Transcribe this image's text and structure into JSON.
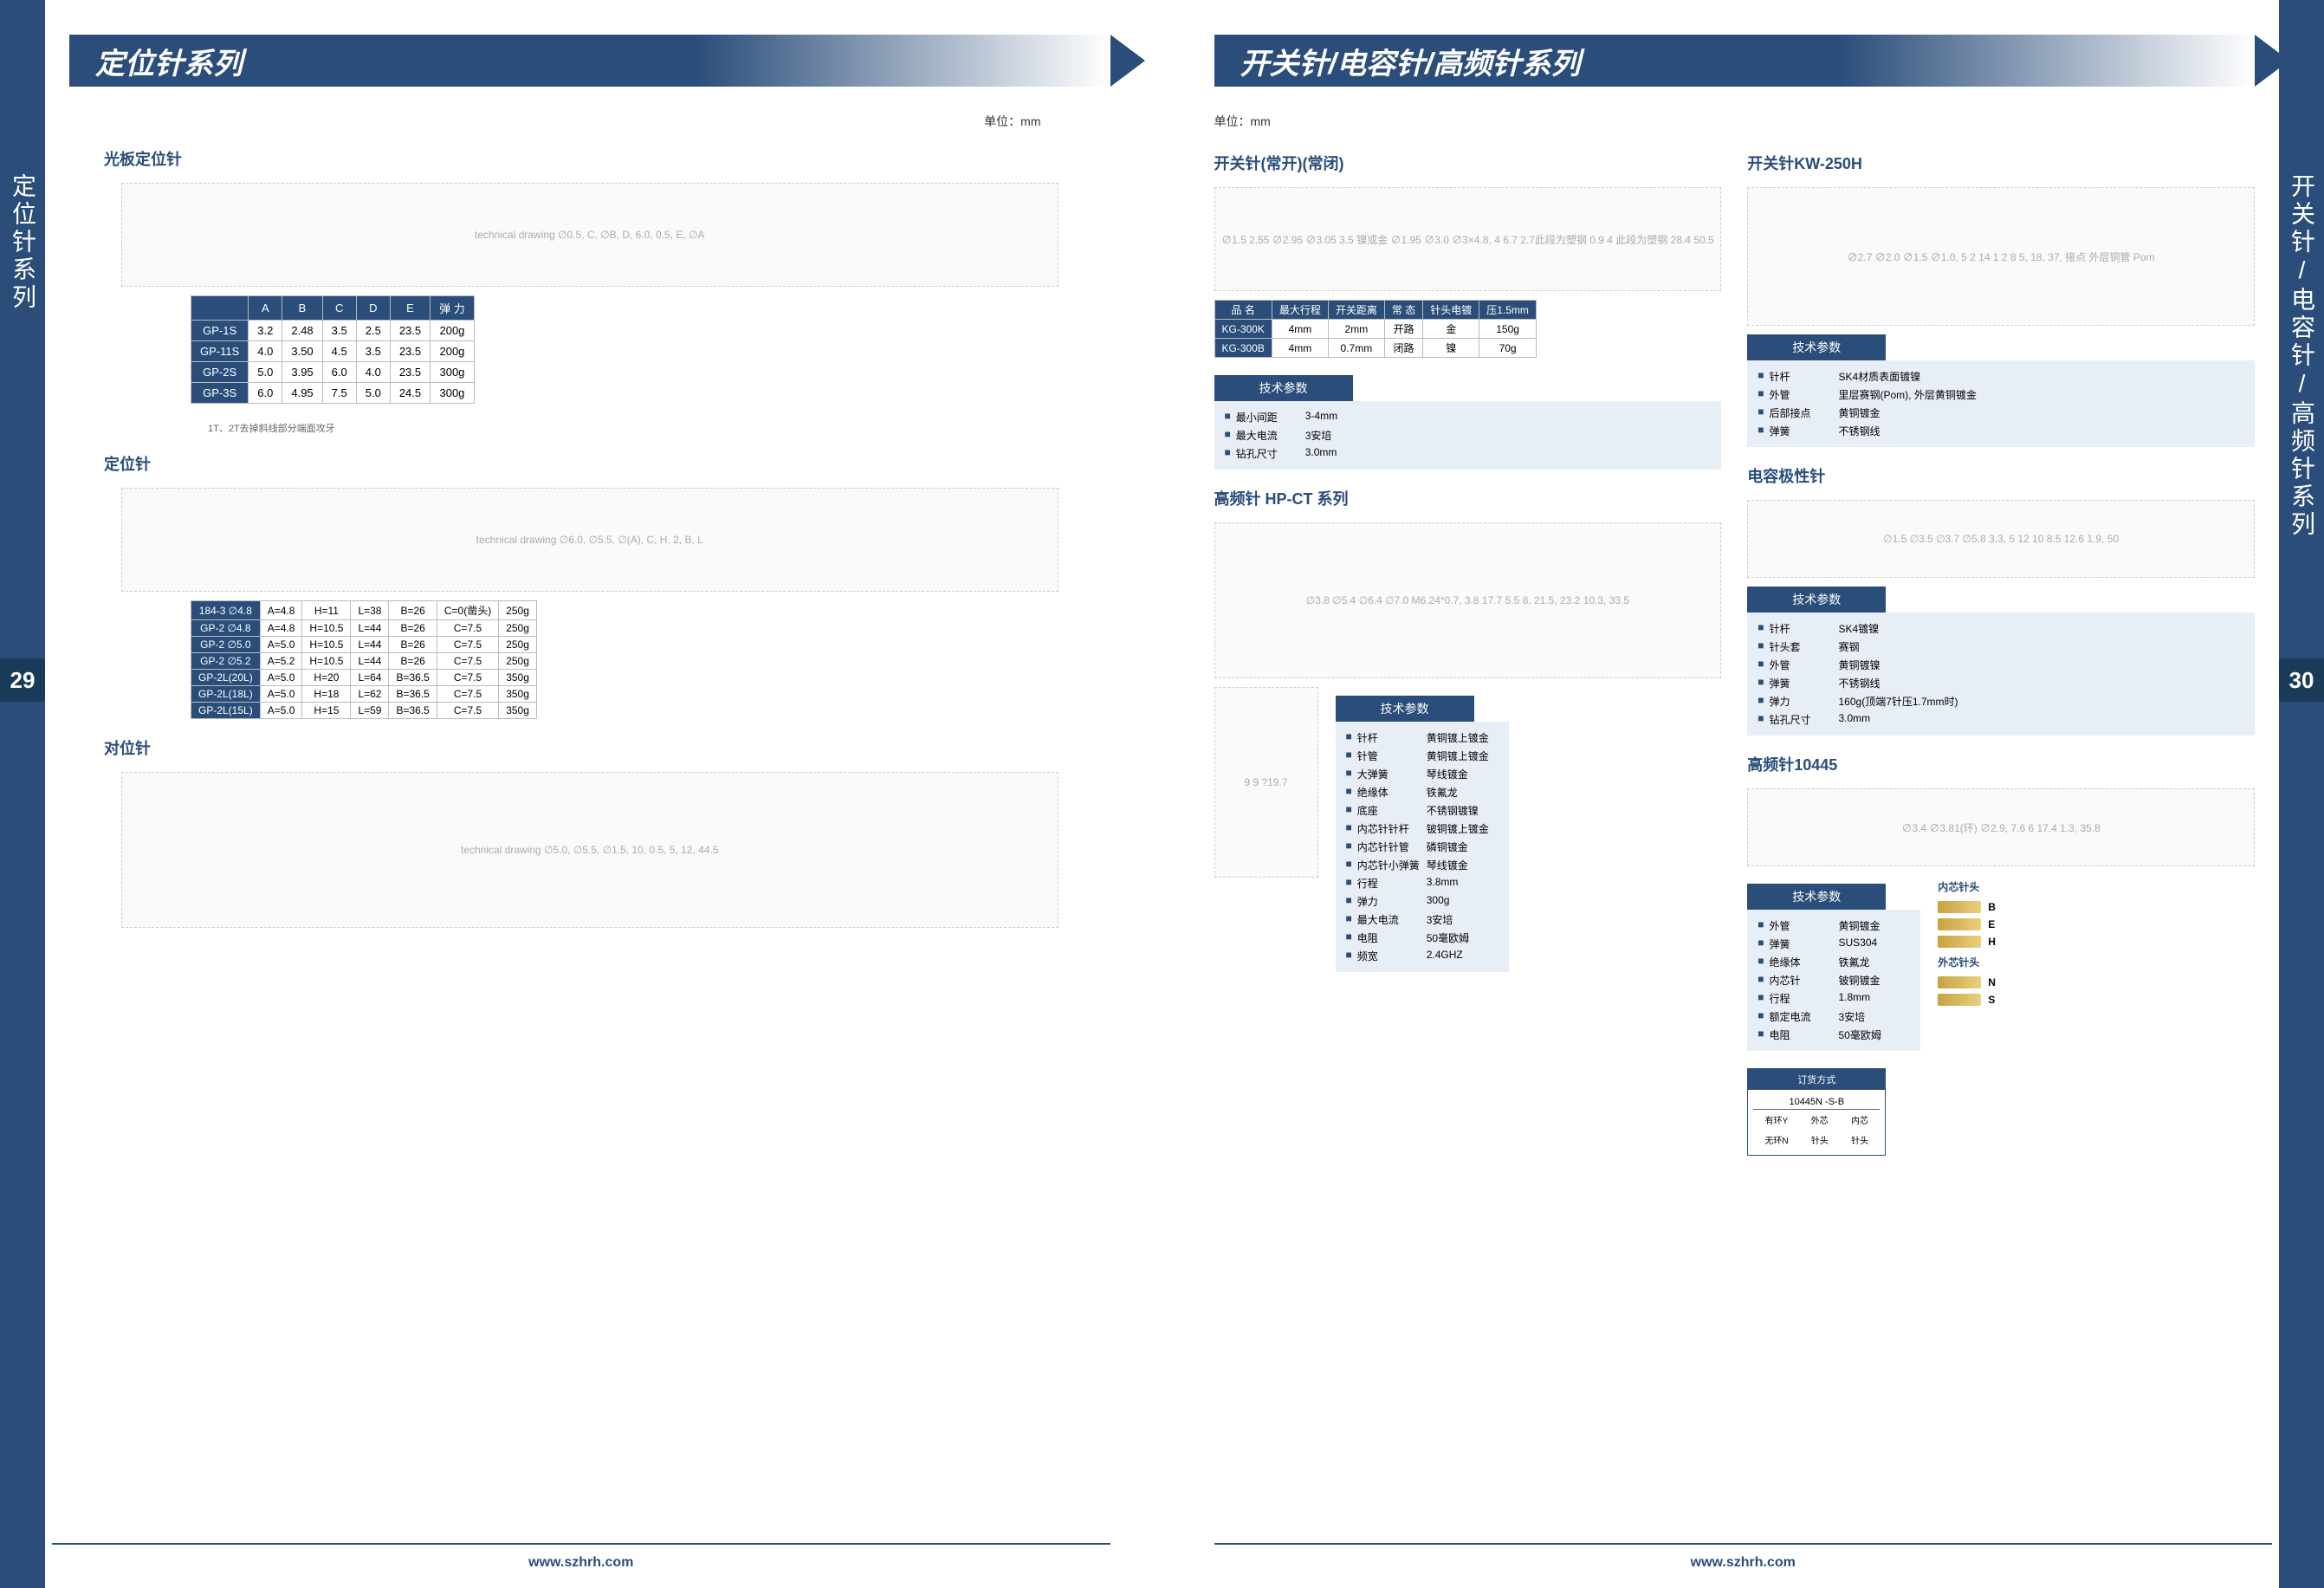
{
  "pageLeft": {
    "sideTab": "定位针系列",
    "pageNum": "29",
    "headerTitle": "定位针系列",
    "unitLabel": "单位：mm",
    "footerUrl": "www.szhrh.com",
    "section1": {
      "title": "光板定位针",
      "diagram": "technical drawing ∅0.5, C, ∅B, D, 6.0, 0.5, E, ∅A",
      "tableHeaders": [
        "",
        "A",
        "B",
        "C",
        "D",
        "E",
        "弹 力"
      ],
      "tableRows": [
        [
          "GP-1S",
          "3.2",
          "2.48",
          "3.5",
          "2.5",
          "23.5",
          "200g"
        ],
        [
          "GP-11S",
          "4.0",
          "3.50",
          "4.5",
          "3.5",
          "23.5",
          "200g"
        ],
        [
          "GP-2S",
          "5.0",
          "3.95",
          "6.0",
          "4.0",
          "23.5",
          "300g"
        ],
        [
          "GP-3S",
          "6.0",
          "4.95",
          "7.5",
          "5.0",
          "24.5",
          "300g"
        ]
      ],
      "tableNote": "1T、2T去掉斜线部分端面攻牙"
    },
    "section2": {
      "title": "定位针",
      "diagram": "technical drawing ∅6.0, ∅5.5, ∅(A), C, H, 2, B, L",
      "tableRows": [
        [
          "184-3 ∅4.8",
          "A=4.8",
          "H=11",
          "L=38",
          "B=26",
          "C=0(凿头)",
          "250g"
        ],
        [
          "GP-2 ∅4.8",
          "A=4.8",
          "H=10.5",
          "L=44",
          "B=26",
          "C=7.5",
          "250g"
        ],
        [
          "GP-2 ∅5.0",
          "A=5.0",
          "H=10.5",
          "L=44",
          "B=26",
          "C=7.5",
          "250g"
        ],
        [
          "GP-2 ∅5.2",
          "A=5.2",
          "H=10.5",
          "L=44",
          "B=26",
          "C=7.5",
          "250g"
        ],
        [
          "GP-2L(20L)",
          "A=5.0",
          "H=20",
          "L=64",
          "B=36.5",
          "C=7.5",
          "350g"
        ],
        [
          "GP-2L(18L)",
          "A=5.0",
          "H=18",
          "L=62",
          "B=36.5",
          "C=7.5",
          "350g"
        ],
        [
          "GP-2L(15L)",
          "A=5.0",
          "H=15",
          "L=59",
          "B=36.5",
          "C=7.5",
          "350g"
        ]
      ]
    },
    "section3": {
      "title": "对位针",
      "diagram": "technical drawing ∅5.0, ∅5.5, ∅1.5, 10, 0.5, 5, 12, 44.5"
    }
  },
  "pageRight": {
    "sideTab": "开关针/电容针/高频针系列",
    "pageNum": "30",
    "headerTitle": "开关针/电容针/高频针系列",
    "unitLabel": "单位：mm",
    "footerUrl": "www.szhrh.com",
    "colL": {
      "sec1": {
        "title": "开关针(常开)(常闭)",
        "diagram": "∅1.5 2.55 ∅2.95 ∅3.05 3.5 镍或金 ∅1.95 ∅3.0 ∅3×4.8, 4 6.7 2.7此段为塑钢 0.9 4 此段为塑钢 28.4 50.5",
        "tableHeaders": [
          "品 名",
          "最大行程",
          "开关距离",
          "常 态",
          "针头电镀",
          "压1.5mm"
        ],
        "tableRows": [
          [
            "KG-300K",
            "4mm",
            "2mm",
            "开路",
            "金",
            "150g"
          ],
          [
            "KG-300B",
            "4mm",
            "0.7mm",
            "闭路",
            "镍",
            "70g"
          ]
        ],
        "params": {
          "title": "技术参数",
          "rows": [
            [
              "最小间距",
              "3-4mm"
            ],
            [
              "最大电流",
              "3安培"
            ],
            [
              "钻孔尺寸",
              "3.0mm"
            ]
          ]
        }
      },
      "sec2": {
        "title": "高频针 HP-CT 系列",
        "diagram": "∅3.8 ∅5.4 ∅6.4 ∅7.0 M6.24*0.7, 3.8 17.7 5.5 8, 21.5, 23.2 10.3, 33.5",
        "flangeDiagram": "9 9 ?19.7",
        "params": {
          "title": "技术参数",
          "rows": [
            [
              "针杆",
              "黄铜镀上镀金"
            ],
            [
              "针管",
              "黄铜镀上镀金"
            ],
            [
              "大弹簧",
              "琴线镀金"
            ],
            [
              "绝缘体",
              "铁氟龙"
            ],
            [
              "底座",
              "不锈钢镀镍"
            ],
            [
              "内芯针针杆",
              "铍铜镀上镀金"
            ],
            [
              "内芯针针管",
              "磷铜镀金"
            ],
            [
              "内芯针小弹簧",
              "琴线镀金"
            ],
            [
              "行程",
              "3.8mm"
            ],
            [
              "弹力",
              "300g"
            ],
            [
              "最大电流",
              "3安培"
            ],
            [
              "电阻",
              "50毫欧姆"
            ],
            [
              "频宽",
              "2.4GHZ"
            ]
          ]
        }
      }
    },
    "colR": {
      "sec1": {
        "title": "开关针KW-250H",
        "diagram": "∅2.7 ∅2.0 ∅1.5 ∅1.0, 5 2 14 1 2 8 5, 18, 37, 接点 外层铜管 Pom",
        "params": {
          "title": "技术参数",
          "rows": [
            [
              "针杆",
              "SK4材质表面镀镍"
            ],
            [
              "外管",
              "里层赛钢(Pom), 外层黄铜镀金"
            ],
            [
              "后部接点",
              "黄铜镀金"
            ],
            [
              "弹簧",
              "不锈钢线"
            ]
          ]
        }
      },
      "sec2": {
        "title": "电容极性针",
        "diagram": "∅1.5 ∅3.5 ∅3.7 ∅5.8 3.3, 5 12 10 8.5 12.6 1.9, 50",
        "params": {
          "title": "技术参数",
          "rows": [
            [
              "针杆",
              "SK4镀镍"
            ],
            [
              "针头套",
              "赛钢"
            ],
            [
              "外管",
              "黄铜镀镍"
            ],
            [
              "弹簧",
              "不锈钢线"
            ],
            [
              "弹力",
              "160g(顶端7针压1.7mm时)"
            ],
            [
              "钻孔尺寸",
              "3.0mm"
            ]
          ]
        }
      },
      "sec3": {
        "title": "高频针10445",
        "diagram": "∅3.4 ∅3.81(环) ∅2.9, 7.6 6 17.4 1.3, 35.8",
        "params": {
          "title": "技术参数",
          "rows": [
            [
              "外管",
              "黄铜镀金"
            ],
            [
              "弹簧",
              "SUS304"
            ],
            [
              "绝缘体",
              "铁氟龙"
            ],
            [
              "内芯针",
              "铍铜镀金"
            ],
            [
              "行程",
              "1.8mm"
            ],
            [
              "额定电流",
              "3安培"
            ],
            [
              "电阻",
              "50毫欧姆"
            ]
          ]
        },
        "order": {
          "title": "订货方式",
          "code": "10445N -S-B",
          "legend": [
            [
              "有环Y",
              "外芯",
              "内芯"
            ],
            [
              "无环N",
              "针头",
              "针头"
            ]
          ]
        },
        "innerHeads": {
          "title": "内芯针头",
          "items": [
            "B",
            "E",
            "H"
          ]
        },
        "outerHeads": {
          "title": "外芯针头",
          "items": [
            "N",
            "S"
          ]
        }
      }
    }
  }
}
